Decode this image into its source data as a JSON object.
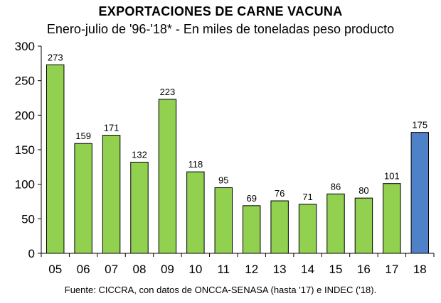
{
  "chart_data": {
    "type": "bar",
    "title": "EXPORTACIONES DE CARNE VACUNA",
    "subtitle": "Enero-julio de '96-'18* - En miles de toneladas peso producto",
    "source": "Fuente: CICCRA, con datos de ONCCA-SENASA (hasta '17) e INDEC ('18).",
    "categories": [
      "05",
      "06",
      "07",
      "08",
      "09",
      "10",
      "11",
      "12",
      "13",
      "14",
      "15",
      "16",
      "17",
      "18"
    ],
    "values": [
      273,
      159,
      171,
      132,
      223,
      118,
      95,
      69,
      76,
      71,
      86,
      80,
      101,
      175
    ],
    "ylim": [
      0,
      300
    ],
    "yticks": [
      0,
      50,
      100,
      150,
      200,
      250,
      300
    ],
    "grid": false,
    "colors": {
      "default": "#92D050",
      "highlight": "#4F81C8",
      "highlight_index": 13
    },
    "data_labels": true
  }
}
